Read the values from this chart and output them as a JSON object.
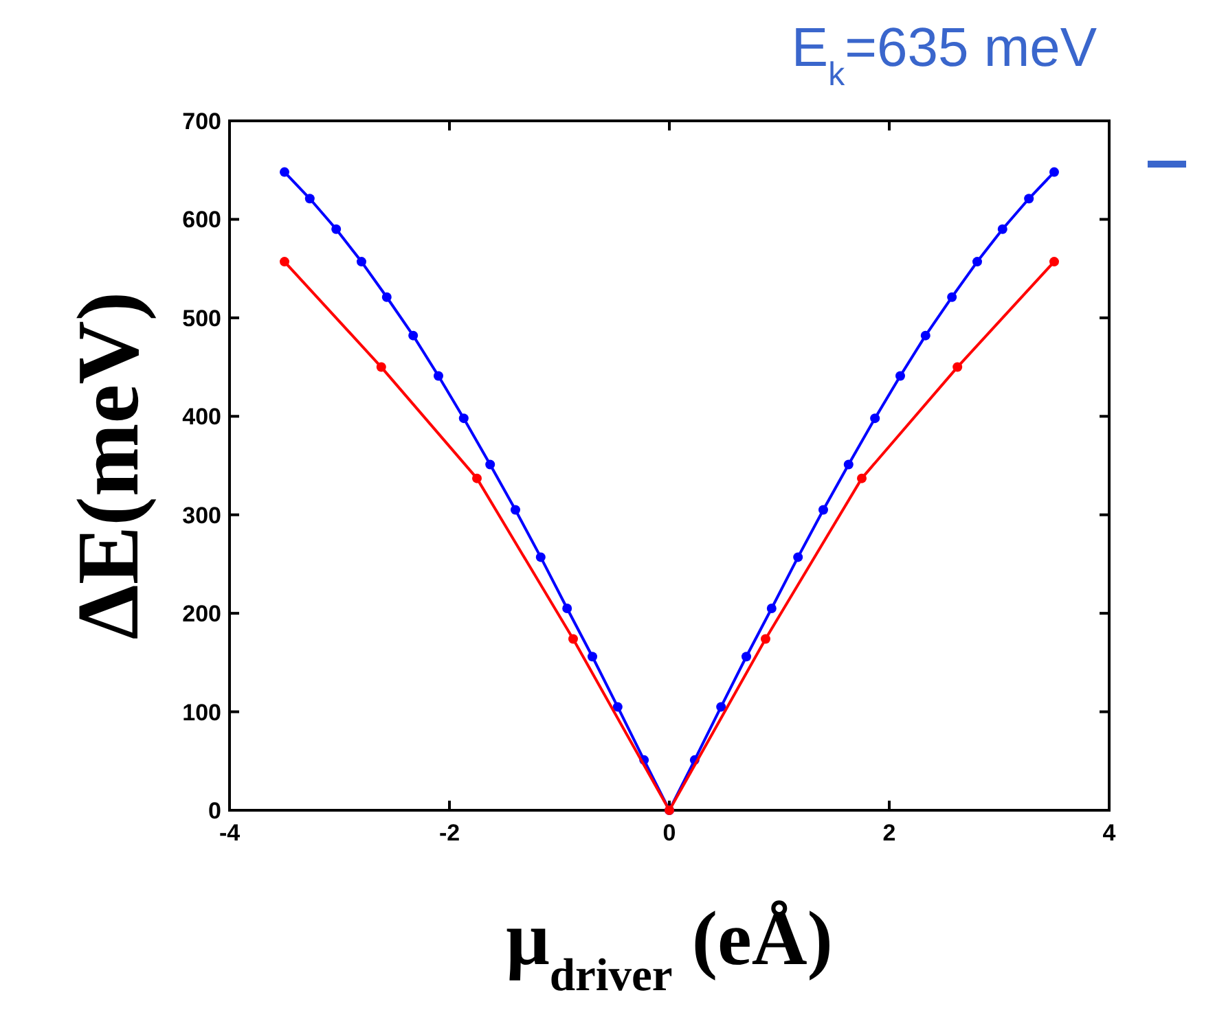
{
  "chart_data": {
    "type": "line",
    "xlabel": "μ$_{driver}$ (eÅ)",
    "ylabel": "ΔE(meV)",
    "annotations": [
      "E$_{k}$=635 meV"
    ],
    "xlim": [
      -4,
      4
    ],
    "ylim": [
      0,
      700
    ],
    "xticks": [
      -4,
      -2,
      0,
      2,
      4
    ],
    "yticks": [
      0,
      100,
      200,
      300,
      400,
      500,
      600,
      700
    ],
    "grid": false,
    "marker": "circle",
    "line_style": "solid",
    "series": [
      {
        "color": "#0000ff",
        "x": [
          -3.5,
          -3.27,
          -3.03,
          -2.8,
          -2.57,
          -2.33,
          -2.1,
          -1.87,
          -1.63,
          -1.4,
          -1.17,
          -0.93,
          -0.7,
          -0.47,
          -0.23,
          0,
          0.23,
          0.47,
          0.7,
          0.93,
          1.17,
          1.4,
          1.63,
          1.87,
          2.1,
          2.33,
          2.57,
          2.8,
          3.03,
          3.27,
          3.5
        ],
        "values": [
          648,
          621,
          590,
          557,
          521,
          482,
          441,
          398,
          351,
          305,
          257,
          205,
          156,
          105,
          51,
          0,
          51,
          105,
          156,
          205,
          257,
          305,
          351,
          398,
          441,
          482,
          521,
          557,
          590,
          621,
          648
        ]
      },
      {
        "color": "#ff0000",
        "x": [
          -3.5,
          -2.62,
          -1.75,
          -0.875,
          0,
          0.875,
          1.75,
          2.62,
          3.5
        ],
        "values": [
          557,
          450,
          337,
          174,
          0,
          174,
          337,
          450,
          557
        ]
      }
    ]
  }
}
